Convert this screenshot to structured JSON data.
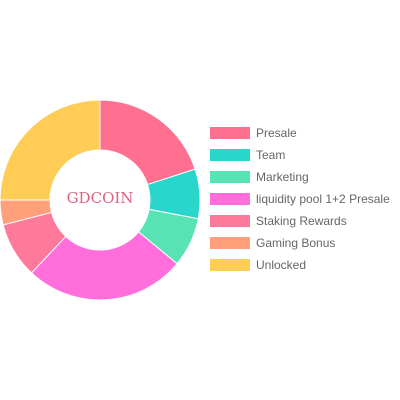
{
  "chart_data": {
    "type": "pie",
    "variant": "doughnut",
    "center_label": "GDCOIN",
    "center_label_color": "#e0627f",
    "legend_position": "right",
    "slices": [
      {
        "label": "Presale",
        "value": 20,
        "color": "#ff6f8f"
      },
      {
        "label": "Team",
        "value": 8,
        "color": "#29d6cc"
      },
      {
        "label": "Marketing",
        "value": 8,
        "color": "#59e3b5"
      },
      {
        "label": "liquidity pool 1+2 Presale",
        "value": 26,
        "color": "#ff6edb"
      },
      {
        "label": "Staking Rewards",
        "value": 9,
        "color": "#ff7a9a"
      },
      {
        "label": "Gaming Bonus",
        "value": 4,
        "color": "#ffa07a"
      },
      {
        "label": "Unlocked",
        "value": 25,
        "color": "#ffcd56"
      }
    ]
  }
}
